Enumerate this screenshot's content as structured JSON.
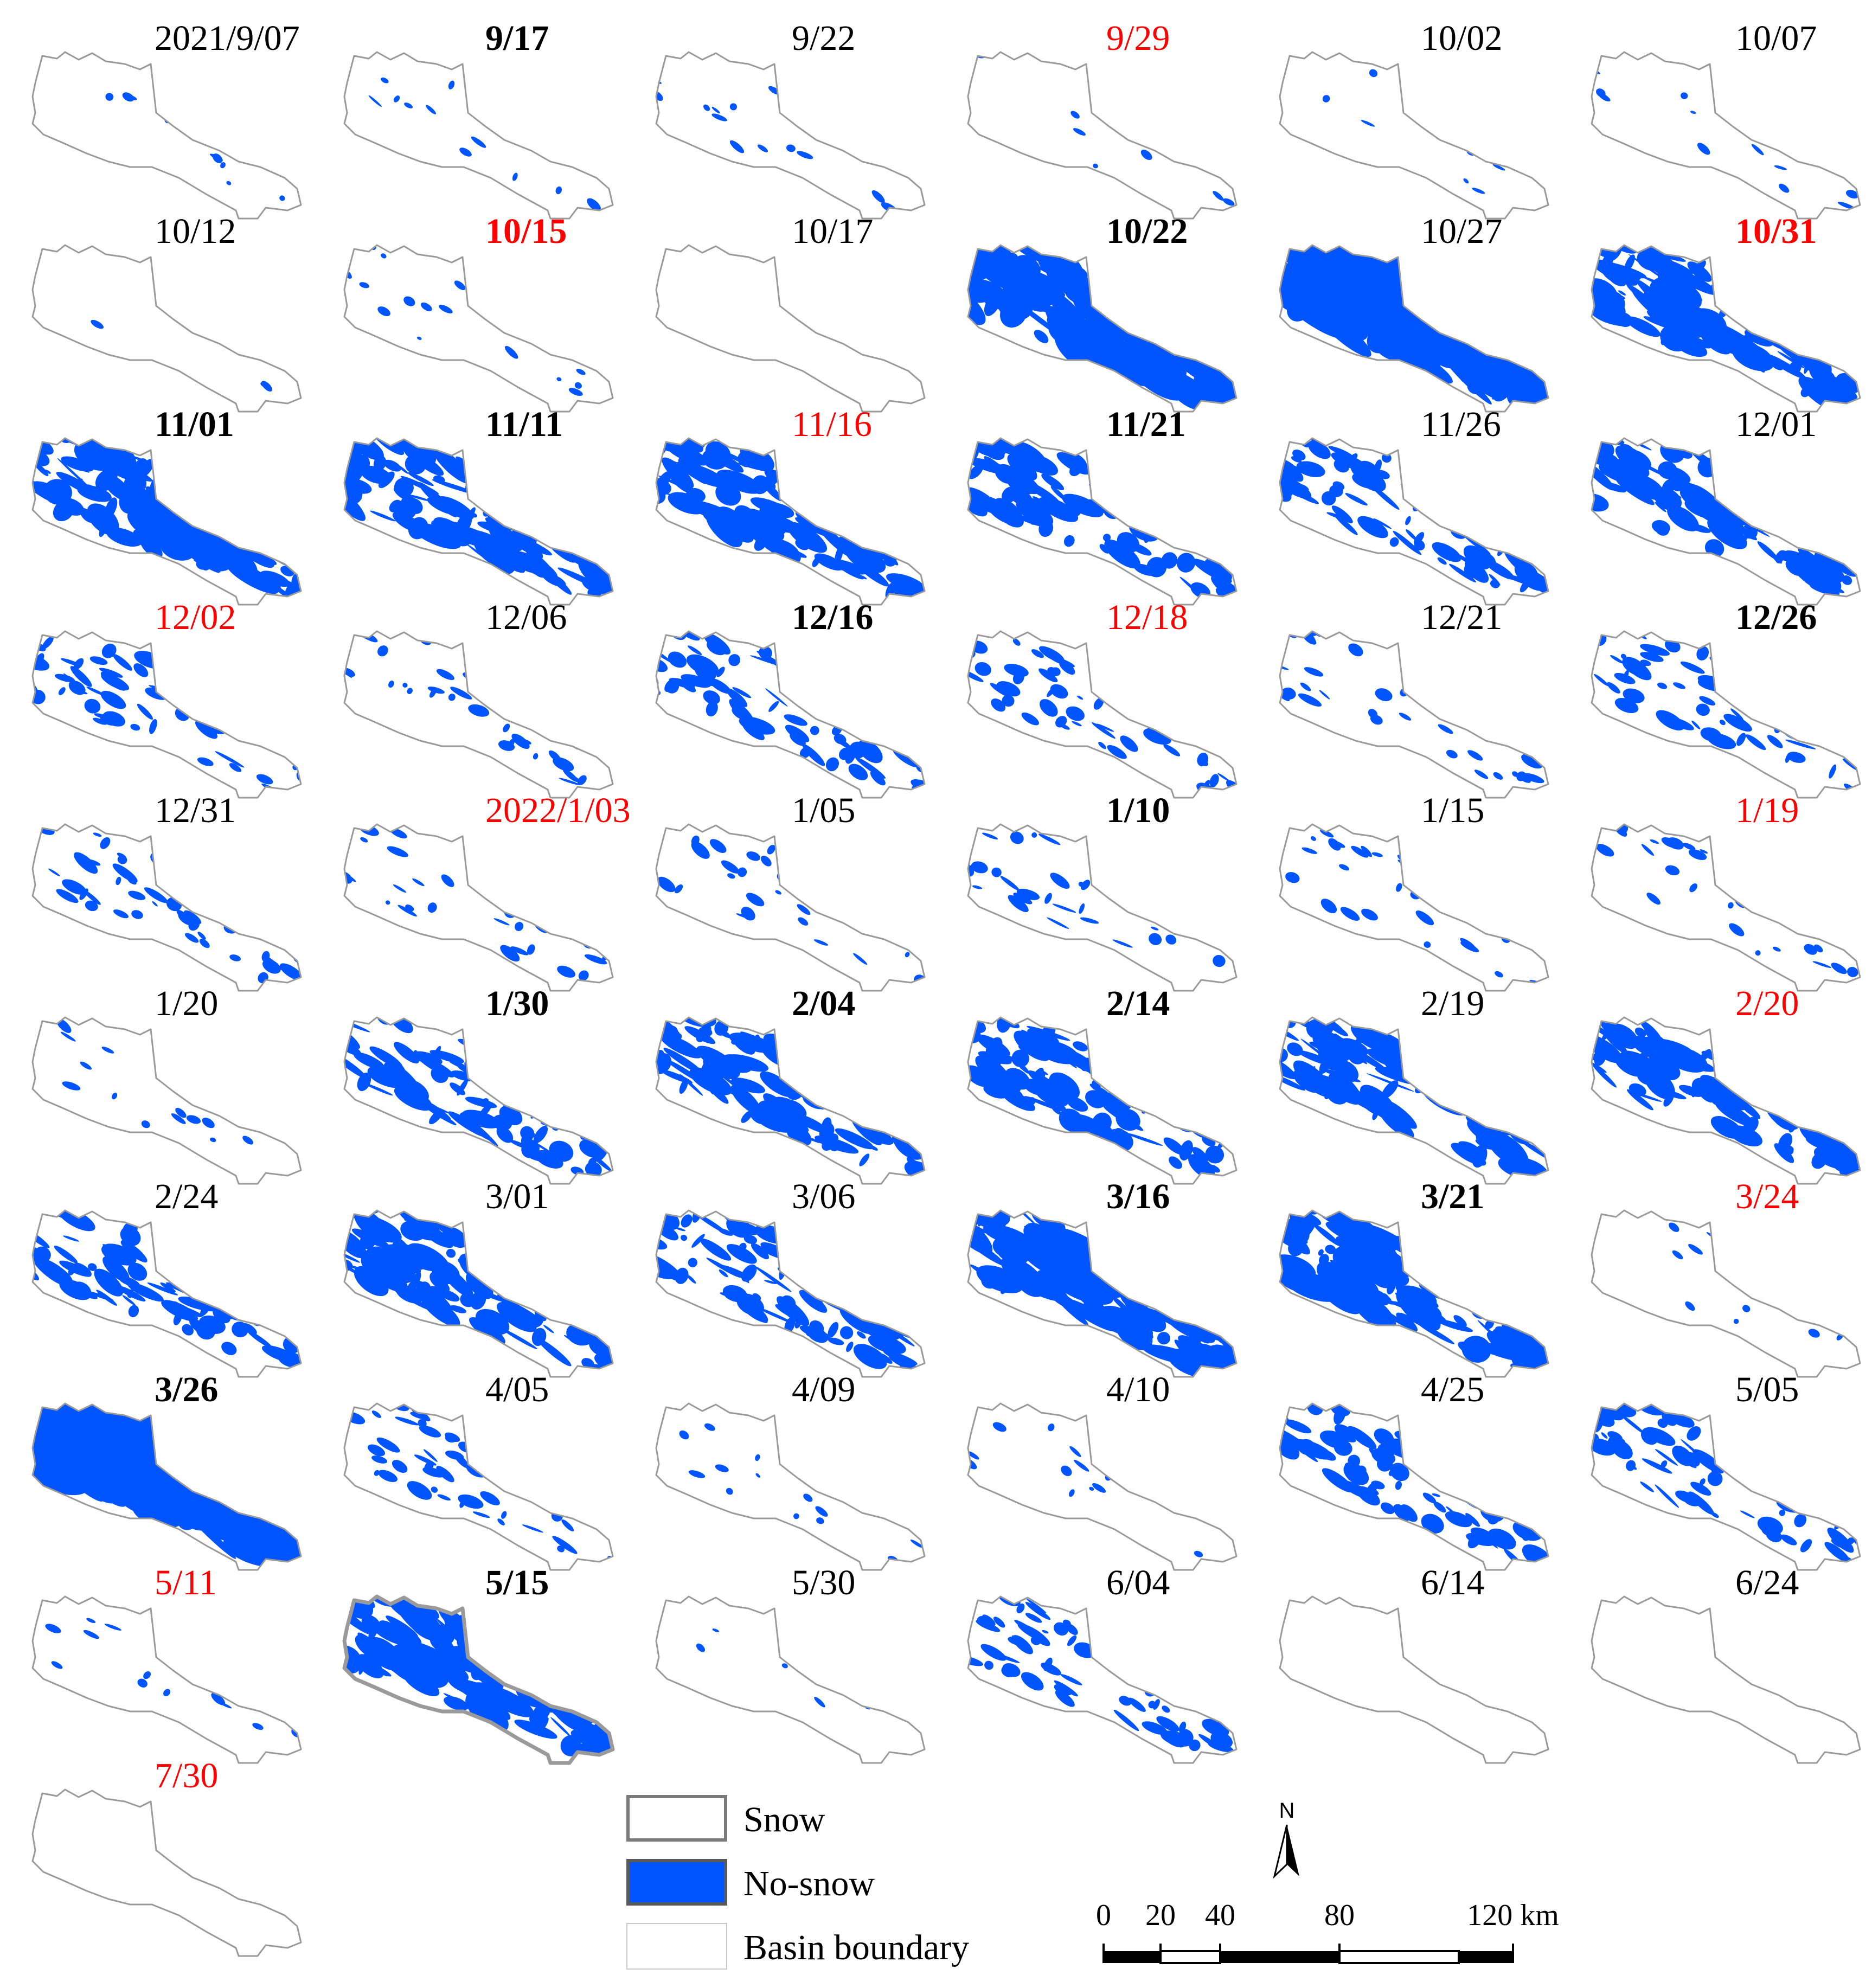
{
  "colors": {
    "no_snow": "#0055ff",
    "snow_fill": "#ffffff",
    "boundary": "#9a9a9a",
    "red_label": "#ff0000"
  },
  "panels": [
    {
      "date": "2021/9/07",
      "style": "normal",
      "snow_free": 0.02
    },
    {
      "date": "9/17",
      "style": "bold",
      "snow_free": 0.05
    },
    {
      "date": "9/22",
      "style": "normal",
      "snow_free": 0.04
    },
    {
      "date": "9/29",
      "style": "red",
      "snow_free": 0.02
    },
    {
      "date": "10/02",
      "style": "normal",
      "snow_free": 0.02
    },
    {
      "date": "10/07",
      "style": "normal",
      "snow_free": 0.05
    },
    {
      "date": "10/12",
      "style": "normal",
      "snow_free": 0.01
    },
    {
      "date": "10/15",
      "style": "red-bold",
      "snow_free": 0.05
    },
    {
      "date": "10/17",
      "style": "normal",
      "snow_free": 0.0
    },
    {
      "date": "10/22",
      "style": "bold",
      "snow_free": 0.7
    },
    {
      "date": "10/27",
      "style": "normal",
      "snow_free": 0.8
    },
    {
      "date": "10/31",
      "style": "red-bold",
      "snow_free": 0.55
    },
    {
      "date": "11/01",
      "style": "bold",
      "snow_free": 0.6
    },
    {
      "date": "11/11",
      "style": "bold",
      "snow_free": 0.5
    },
    {
      "date": "11/16",
      "style": "red",
      "snow_free": 0.45
    },
    {
      "date": "11/21",
      "style": "bold",
      "snow_free": 0.4
    },
    {
      "date": "11/26",
      "style": "normal",
      "snow_free": 0.35
    },
    {
      "date": "12/01",
      "style": "normal",
      "snow_free": 0.45
    },
    {
      "date": "12/02",
      "style": "red",
      "snow_free": 0.25
    },
    {
      "date": "12/06",
      "style": "normal",
      "snow_free": 0.15
    },
    {
      "date": "12/16",
      "style": "bold",
      "snow_free": 0.3
    },
    {
      "date": "12/18",
      "style": "red",
      "snow_free": 0.2
    },
    {
      "date": "12/21",
      "style": "normal",
      "snow_free": 0.15
    },
    {
      "date": "12/26",
      "style": "bold",
      "snow_free": 0.25
    },
    {
      "date": "12/31",
      "style": "normal",
      "snow_free": 0.2
    },
    {
      "date": "2022/1/03",
      "style": "red",
      "snow_free": 0.12
    },
    {
      "date": "1/05",
      "style": "normal",
      "snow_free": 0.12
    },
    {
      "date": "1/10",
      "style": "bold",
      "snow_free": 0.15
    },
    {
      "date": "1/15",
      "style": "normal",
      "snow_free": 0.1
    },
    {
      "date": "1/19",
      "style": "red",
      "snow_free": 0.1
    },
    {
      "date": "1/20",
      "style": "normal",
      "snow_free": 0.06
    },
    {
      "date": "1/30",
      "style": "bold",
      "snow_free": 0.4
    },
    {
      "date": "2/04",
      "style": "bold",
      "snow_free": 0.45
    },
    {
      "date": "2/14",
      "style": "bold",
      "snow_free": 0.45
    },
    {
      "date": "2/19",
      "style": "normal",
      "snow_free": 0.5
    },
    {
      "date": "2/20",
      "style": "red",
      "snow_free": 0.45
    },
    {
      "date": "2/24",
      "style": "normal",
      "snow_free": 0.35
    },
    {
      "date": "3/01",
      "style": "normal",
      "snow_free": 0.45
    },
    {
      "date": "3/06",
      "style": "normal",
      "snow_free": 0.4
    },
    {
      "date": "3/16",
      "style": "bold",
      "snow_free": 0.6
    },
    {
      "date": "3/21",
      "style": "bold",
      "snow_free": 0.6
    },
    {
      "date": "3/24",
      "style": "red",
      "snow_free": 0.03
    },
    {
      "date": "3/26",
      "style": "bold",
      "snow_free": 0.85
    },
    {
      "date": "4/05",
      "style": "normal",
      "snow_free": 0.2
    },
    {
      "date": "4/09",
      "style": "normal",
      "snow_free": 0.05
    },
    {
      "date": "4/10",
      "style": "normal",
      "snow_free": 0.06
    },
    {
      "date": "4/25",
      "style": "normal",
      "snow_free": 0.35
    },
    {
      "date": "5/05",
      "style": "normal",
      "snow_free": 0.3
    },
    {
      "date": "5/11",
      "style": "red",
      "snow_free": 0.04
    },
    {
      "date": "5/15",
      "style": "bold",
      "snow_free": 0.55
    },
    {
      "date": "5/30",
      "style": "normal",
      "snow_free": 0.01
    },
    {
      "date": "6/04",
      "style": "normal",
      "snow_free": 0.25
    },
    {
      "date": "6/14",
      "style": "normal",
      "snow_free": 0.0
    },
    {
      "date": "6/24",
      "style": "normal",
      "snow_free": 0.0
    },
    {
      "date": "7/30",
      "style": "red",
      "snow_free": 0.0
    }
  ],
  "legend": {
    "snow": "Snow",
    "no_snow": "No-snow",
    "basin_boundary": "Basin boundary"
  },
  "north_arrow": {
    "label": "N"
  },
  "scale_bar": {
    "ticks": [
      "0",
      "20",
      "40",
      "80",
      "120 km"
    ]
  }
}
